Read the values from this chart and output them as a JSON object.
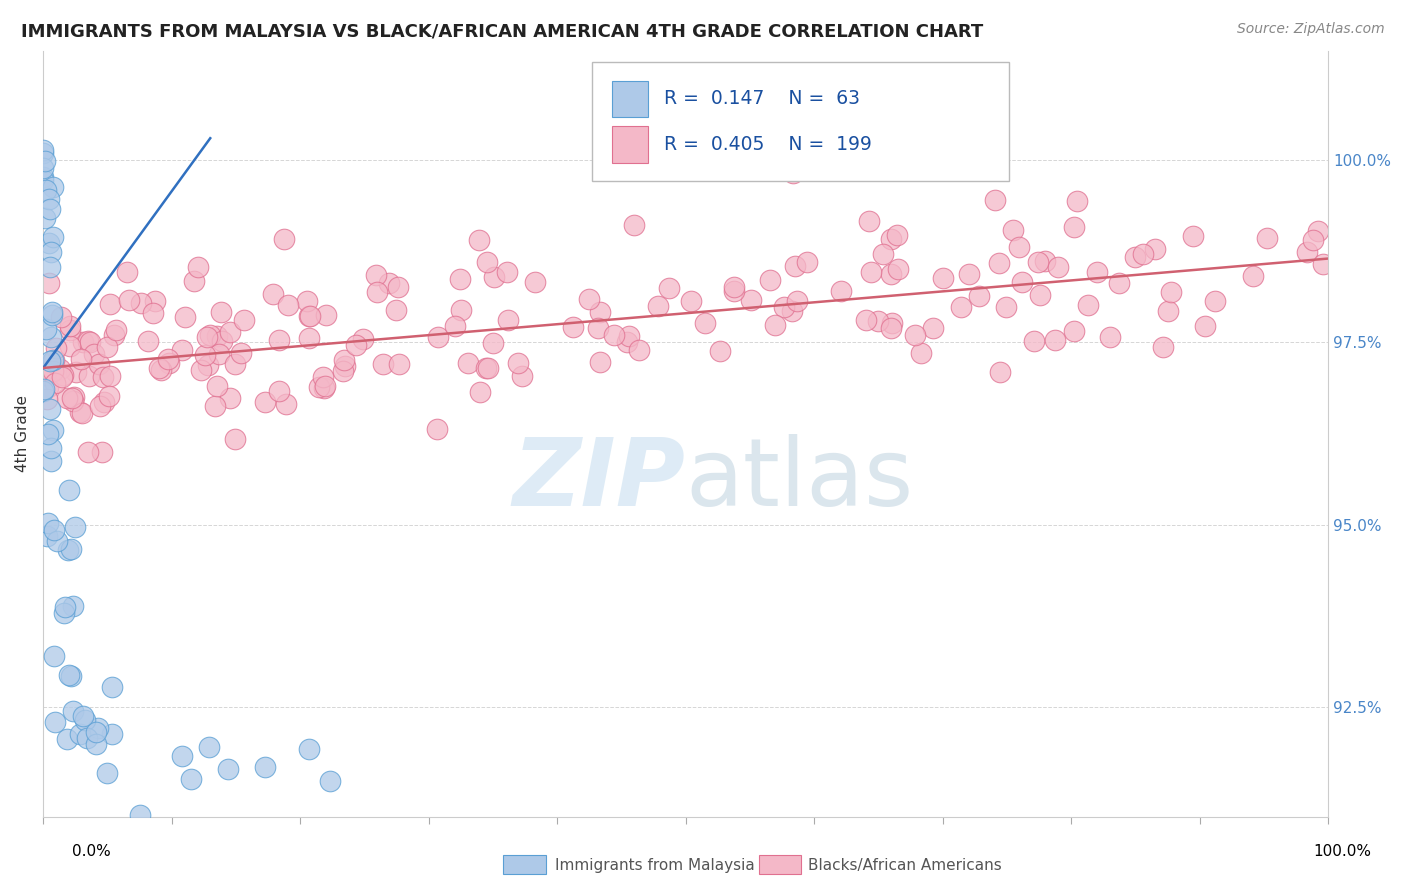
{
  "title": "IMMIGRANTS FROM MALAYSIA VS BLACK/AFRICAN AMERICAN 4TH GRADE CORRELATION CHART",
  "source": "Source: ZipAtlas.com",
  "ylabel": "4th Grade",
  "yticks": [
    92.5,
    95.0,
    97.5,
    100.0
  ],
  "ytick_labels": [
    "92.5%",
    "95.0%",
    "97.5%",
    "100.0%"
  ],
  "xlim": [
    0.0,
    1.0
  ],
  "ylim": [
    91.0,
    101.5
  ],
  "legend_R1": "0.147",
  "legend_N1": "63",
  "legend_R2": "0.405",
  "legend_N2": "199",
  "blue_fill": "#aec9e8",
  "blue_edge": "#5a9fd4",
  "pink_fill": "#f4b8c8",
  "pink_edge": "#e07090",
  "blue_line": "#3070c0",
  "pink_line": "#d06070",
  "watermark_color": "#d8e8f0",
  "grid_color": "#cccccc",
  "title_color": "#222222",
  "source_color": "#888888",
  "axis_label_color": "#333333",
  "right_tick_color": "#4a86c8",
  "legend_text_color": "#1a50a0",
  "legend_rn_color": "#333333"
}
